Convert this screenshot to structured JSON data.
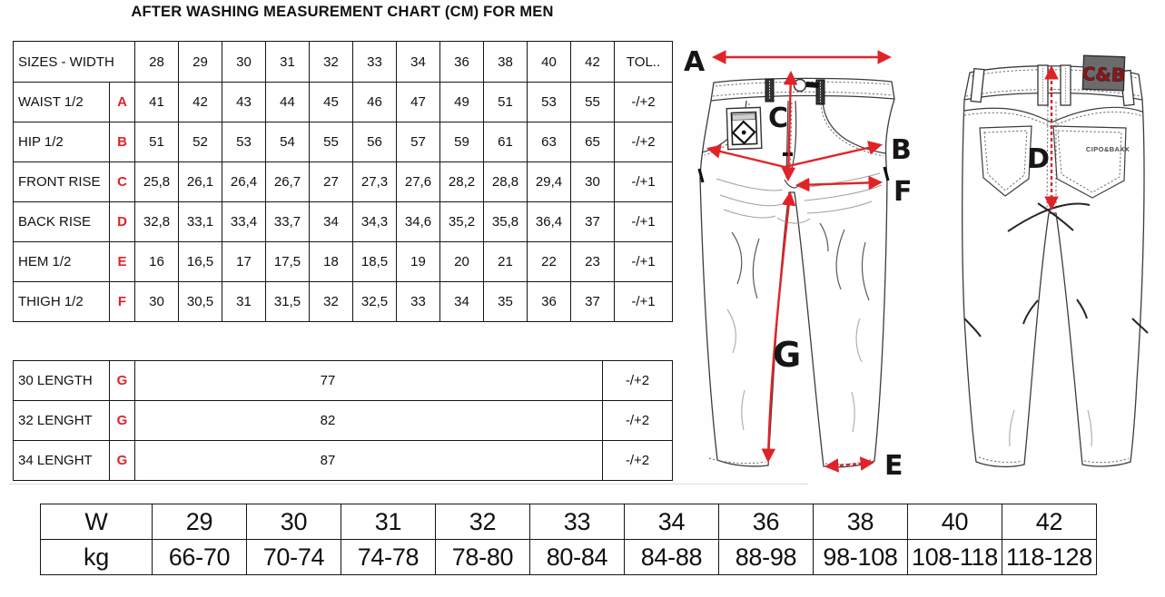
{
  "title": "AFTER WASHING MEASUREMENT CHART (CM) FOR MEN",
  "colors": {
    "accent_red": "#e02328",
    "patch_gray": "#6b6b6b",
    "patch_text_red": "#9c1115",
    "outline_gray": "#3c3c3c"
  },
  "main_table": {
    "header_label": "SIZES - WIDTH",
    "sizes": [
      "28",
      "29",
      "30",
      "31",
      "32",
      "33",
      "34",
      "36",
      "38",
      "40",
      "42"
    ],
    "tol_header": "TOL..",
    "rows": [
      {
        "label": "WAIST 1/2",
        "letter": "A",
        "values": [
          "41",
          "42",
          "43",
          "44",
          "45",
          "46",
          "47",
          "49",
          "51",
          "53",
          "55"
        ],
        "tol": "-/+2"
      },
      {
        "label": "HIP 1/2",
        "letter": "B",
        "values": [
          "51",
          "52",
          "53",
          "54",
          "55",
          "56",
          "57",
          "59",
          "61",
          "63",
          "65"
        ],
        "tol": "-/+2"
      },
      {
        "label": "FRONT RISE",
        "letter": "C",
        "values": [
          "25,8",
          "26,1",
          "26,4",
          "26,7",
          "27",
          "27,3",
          "27,6",
          "28,2",
          "28,8",
          "29,4",
          "30"
        ],
        "tol": "-/+1"
      },
      {
        "label": "BACK RISE",
        "letter": "D",
        "values": [
          "32,8",
          "33,1",
          "33,4",
          "33,7",
          "34",
          "34,3",
          "34,6",
          "35,2",
          "35,8",
          "36,4",
          "37"
        ],
        "tol": "-/+1"
      },
      {
        "label": "HEM 1/2",
        "letter": "E",
        "values": [
          "16",
          "16,5",
          "17",
          "17,5",
          "18",
          "18,5",
          "19",
          "20",
          "21",
          "22",
          "23"
        ],
        "tol": "-/+1"
      },
      {
        "label": "THIGH 1/2",
        "letter": "F",
        "values": [
          "30",
          "30,5",
          "31",
          "31,5",
          "32",
          "32,5",
          "33",
          "34",
          "35",
          "36",
          "37"
        ],
        "tol": "-/+1"
      }
    ]
  },
  "length_table": {
    "rows": [
      {
        "label": "30 LENGTH",
        "letter": "G",
        "value": "77",
        "tol": "-/+2"
      },
      {
        "label": "32 LENGHT",
        "letter": "G",
        "value": "82",
        "tol": "-/+2"
      },
      {
        "label": "34 LENGHT",
        "letter": "G",
        "value": "87",
        "tol": "-/+2"
      }
    ]
  },
  "weight_table": {
    "row1": [
      "W",
      "29",
      "30",
      "31",
      "32",
      "33",
      "34",
      "36",
      "38",
      "40",
      "42"
    ],
    "row2": [
      "kg",
      "66-70",
      "70-74",
      "74-78",
      "78-80",
      "80-84",
      "84-88",
      "88-98",
      "98-108",
      "108-118",
      "118-128"
    ]
  },
  "diagram": {
    "front": {
      "a": "A",
      "b": "B",
      "c": "C",
      "e": "E",
      "f": "F",
      "g": "G"
    },
    "back": {
      "d": "D"
    },
    "patch_label": "C&B",
    "pocket_brand": "CIPO&BAXX"
  }
}
